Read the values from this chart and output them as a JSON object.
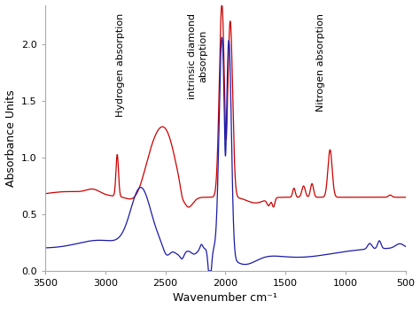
{
  "xlabel": "Wavenumber cm⁻¹",
  "ylabel": "Absorbance Units",
  "xlim": [
    3500,
    500
  ],
  "ylim": [
    0.0,
    2.35
  ],
  "yticks": [
    0.0,
    0.5,
    1.0,
    1.5,
    2.0
  ],
  "xticks": [
    3500,
    3000,
    2500,
    2000,
    1500,
    1000,
    500
  ],
  "red_color": "#cc0000",
  "blue_color": "#1a1aaa",
  "bg_color": "#ffffff",
  "ann_hydrogen_x": 2870,
  "ann_diamond_x": 2230,
  "ann_nitrogen_x": 1210,
  "ann_fontsize": 8.0
}
